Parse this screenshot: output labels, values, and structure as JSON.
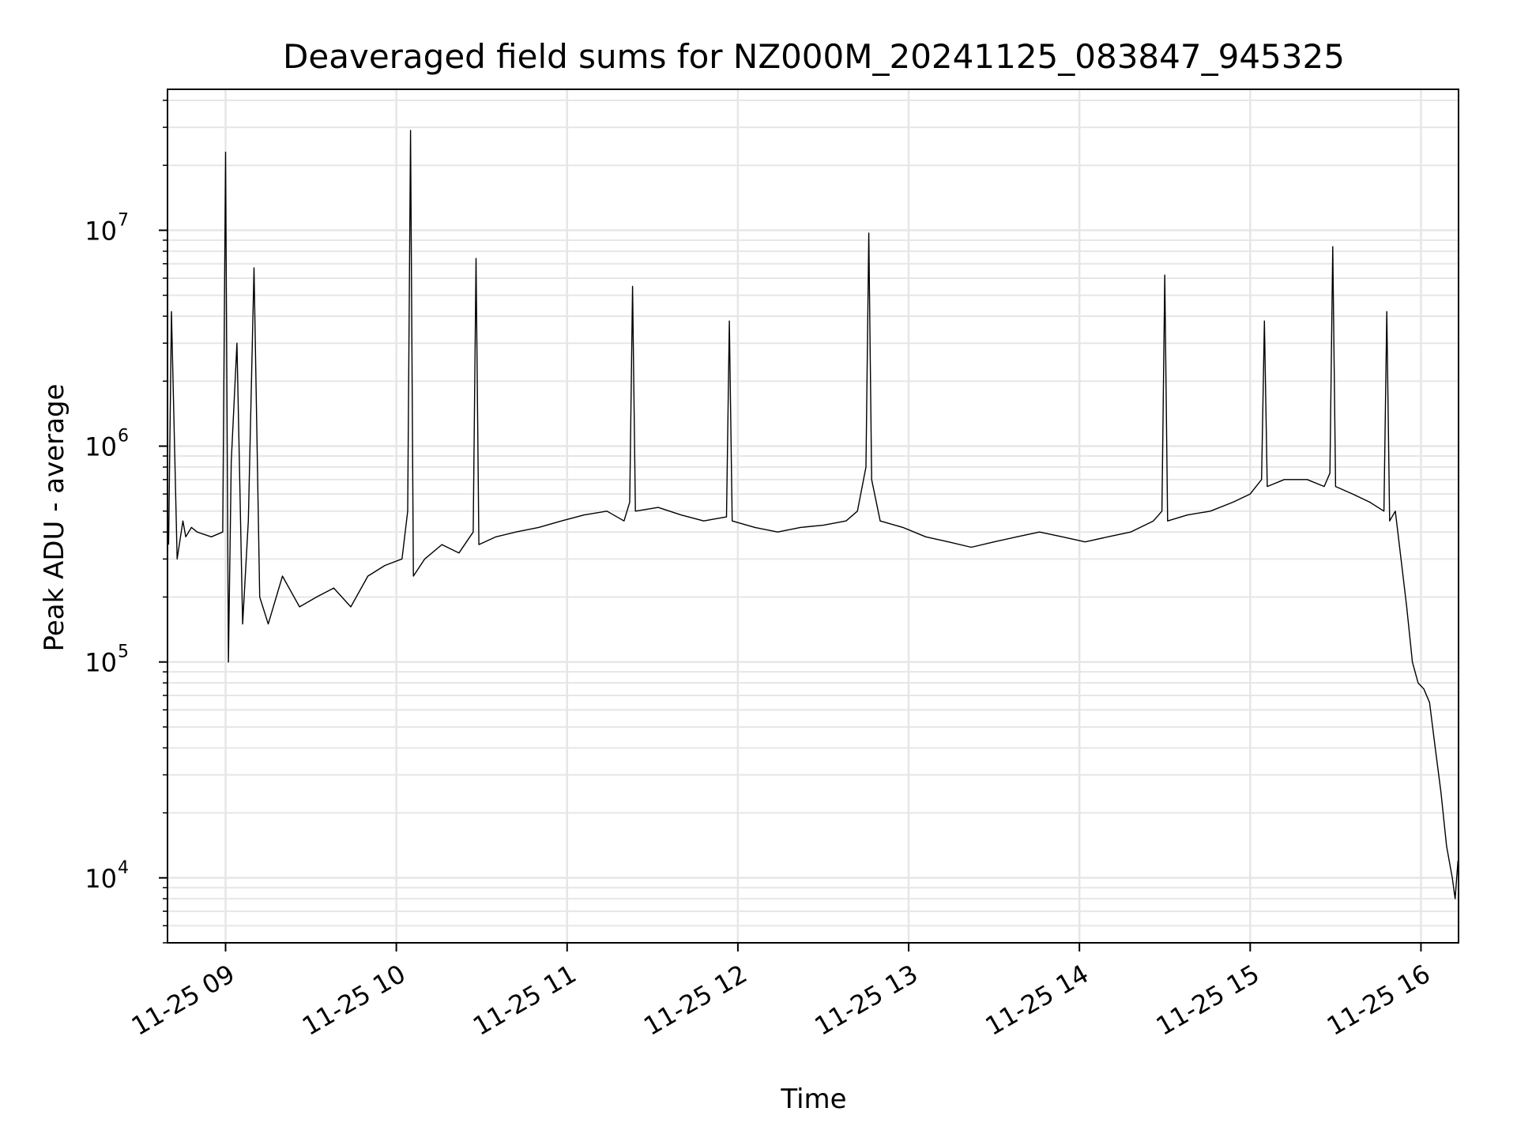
{
  "chart_data": {
    "type": "line",
    "title": "Deaveraged field sums for NZ000M_20241125_083847_945325",
    "xlabel": "Time",
    "ylabel": "Peak ADU - average",
    "yscale": "log",
    "ylim": [
      5000,
      45000000
    ],
    "xlim": [
      "2024-11-25 08:39:36",
      "2024-11-25 16:13:12"
    ],
    "grid": true,
    "line_color": "#000000",
    "grid_color": "#e6e6e6",
    "x_ticks": [
      "11-25 09",
      "11-25 10",
      "11-25 11",
      "11-25 12",
      "11-25 13",
      "11-25 14",
      "11-25 15",
      "11-25 16"
    ],
    "x_tick_times": [
      "2024-11-25 09:00",
      "2024-11-25 10:00",
      "2024-11-25 11:00",
      "2024-11-25 12:00",
      "2024-11-25 13:00",
      "2024-11-25 14:00",
      "2024-11-25 15:00",
      "2024-11-25 16:00"
    ],
    "y_ticks": [
      {
        "base": "10",
        "exp": "4",
        "value": 10000
      },
      {
        "base": "10",
        "exp": "5",
        "value": 100000
      },
      {
        "base": "10",
        "exp": "6",
        "value": 1000000
      },
      {
        "base": "10",
        "exp": "7",
        "value": 10000000
      }
    ],
    "series": [
      {
        "values_note": "",
        "x": [
          "2024-11-25 08:40",
          "2024-11-25 08:41",
          "2024-11-25 08:43",
          "2024-11-25 08:45",
          "2024-11-25 08:46",
          "2024-11-25 08:48",
          "2024-11-25 08:50",
          "2024-11-25 08:55",
          "2024-11-25 08:59",
          "2024-11-25 09:00",
          "2024-11-25 09:01",
          "2024-11-25 09:02",
          "2024-11-25 09:04",
          "2024-11-25 09:06",
          "2024-11-25 09:08",
          "2024-11-25 09:10",
          "2024-11-25 09:12",
          "2024-11-25 09:15",
          "2024-11-25 09:20",
          "2024-11-25 09:26",
          "2024-11-25 09:32",
          "2024-11-25 09:38",
          "2024-11-25 09:44",
          "2024-11-25 09:50",
          "2024-11-25 09:56",
          "2024-11-25 10:02",
          "2024-11-25 10:04",
          "2024-11-25 10:05",
          "2024-11-25 10:06",
          "2024-11-25 10:10",
          "2024-11-25 10:16",
          "2024-11-25 10:22",
          "2024-11-25 10:27",
          "2024-11-25 10:28",
          "2024-11-25 10:29",
          "2024-11-25 10:35",
          "2024-11-25 10:42",
          "2024-11-25 10:50",
          "2024-11-25 10:58",
          "2024-11-25 11:06",
          "2024-11-25 11:14",
          "2024-11-25 11:20",
          "2024-11-25 11:22",
          "2024-11-25 11:23",
          "2024-11-25 11:24",
          "2024-11-25 11:32",
          "2024-11-25 11:40",
          "2024-11-25 11:48",
          "2024-11-25 11:52",
          "2024-11-25 11:56",
          "2024-11-25 11:57",
          "2024-11-25 11:58",
          "2024-11-25 12:06",
          "2024-11-25 12:14",
          "2024-11-25 12:22",
          "2024-11-25 12:30",
          "2024-11-25 12:38",
          "2024-11-25 12:42",
          "2024-11-25 12:45",
          "2024-11-25 12:46",
          "2024-11-25 12:47",
          "2024-11-25 12:50",
          "2024-11-25 12:58",
          "2024-11-25 13:06",
          "2024-11-25 13:14",
          "2024-11-25 13:22",
          "2024-11-25 13:30",
          "2024-11-25 13:38",
          "2024-11-25 13:46",
          "2024-11-25 13:54",
          "2024-11-25 14:02",
          "2024-11-25 14:10",
          "2024-11-25 14:18",
          "2024-11-25 14:26",
          "2024-11-25 14:29",
          "2024-11-25 14:30",
          "2024-11-25 14:31",
          "2024-11-25 14:38",
          "2024-11-25 14:46",
          "2024-11-25 14:54",
          "2024-11-25 15:00",
          "2024-11-25 15:04",
          "2024-11-25 15:05",
          "2024-11-25 15:06",
          "2024-11-25 15:12",
          "2024-11-25 15:20",
          "2024-11-25 15:26",
          "2024-11-25 15:28",
          "2024-11-25 15:29",
          "2024-11-25 15:30",
          "2024-11-25 15:36",
          "2024-11-25 15:42",
          "2024-11-25 15:47",
          "2024-11-25 15:48",
          "2024-11-25 15:49",
          "2024-11-25 15:51",
          "2024-11-25 15:53",
          "2024-11-25 15:55",
          "2024-11-25 15:57",
          "2024-11-25 15:59",
          "2024-11-25 16:01",
          "2024-11-25 16:03",
          "2024-11-25 16:05",
          "2024-11-25 16:07",
          "2024-11-25 16:09",
          "2024-11-25 16:11",
          "2024-11-25 16:12",
          "2024-11-25 16:13"
        ],
        "values": [
          350000,
          4200000,
          300000,
          450000,
          380000,
          420000,
          400000,
          380000,
          400000,
          23000000,
          100000,
          850000,
          3000000,
          150000,
          450000,
          6700000,
          200000,
          150000,
          250000,
          180000,
          200000,
          220000,
          180000,
          250000,
          280000,
          300000,
          500000,
          29000000,
          250000,
          300000,
          350000,
          320000,
          400000,
          7400000,
          350000,
          380000,
          400000,
          420000,
          450000,
          480000,
          500000,
          450000,
          550000,
          5500000,
          500000,
          520000,
          480000,
          450000,
          460000,
          470000,
          3800000,
          450000,
          420000,
          400000,
          420000,
          430000,
          450000,
          500000,
          800000,
          9700000,
          700000,
          450000,
          420000,
          380000,
          360000,
          340000,
          360000,
          380000,
          400000,
          380000,
          360000,
          380000,
          400000,
          450000,
          500000,
          6200000,
          450000,
          480000,
          500000,
          550000,
          600000,
          700000,
          3800000,
          650000,
          700000,
          700000,
          650000,
          750000,
          8400000,
          650000,
          600000,
          550000,
          500000,
          4200000,
          450000,
          500000,
          300000,
          180000,
          100000,
          80000,
          75000,
          65000,
          40000,
          25000,
          14000,
          10000,
          8000,
          12000
        ]
      }
    ]
  }
}
